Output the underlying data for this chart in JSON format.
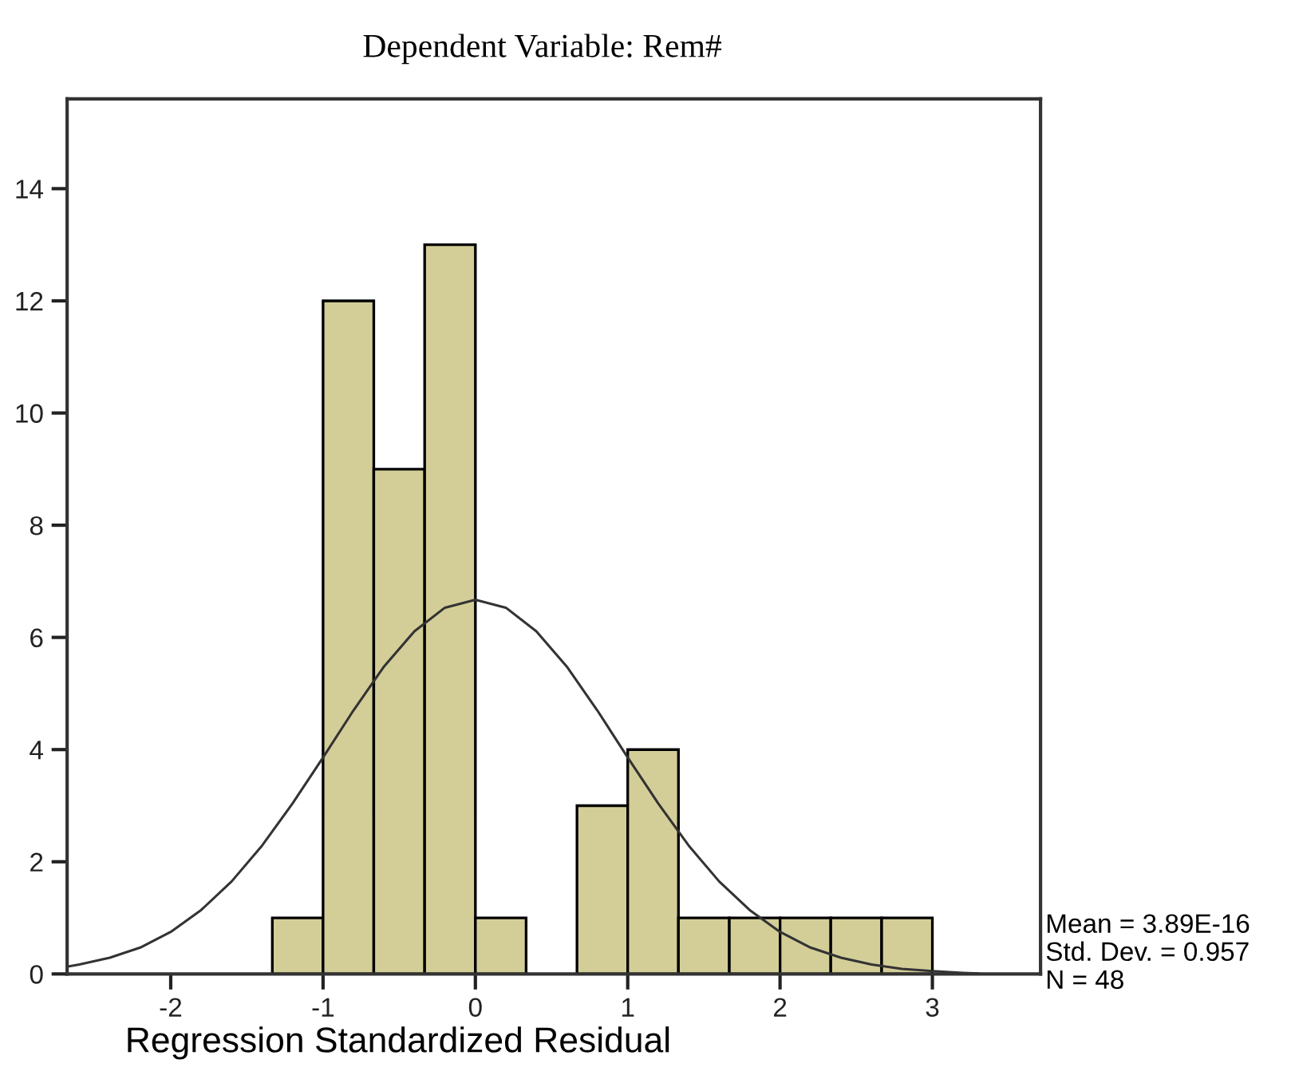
{
  "chart_data": {
    "type": "histogram",
    "title": "Dependent Variable: Rem#",
    "xlabel": "Regression Standardized Residual",
    "bins": [
      -1.333,
      -1.0,
      -0.667,
      -0.333,
      0.0,
      0.333,
      0.667,
      1.0,
      1.333,
      1.667,
      2.0,
      2.333,
      2.667,
      3.0
    ],
    "values": [
      1,
      12,
      9,
      13,
      1,
      0,
      3,
      4,
      1,
      1,
      1,
      1,
      1
    ],
    "color": "#d3ce98",
    "series": [
      {
        "type": "line",
        "color": "#333333",
        "x": [
          -2.68,
          -2.6,
          -2.4,
          -2.2,
          -2.0,
          -1.8,
          -1.6,
          -1.4,
          -1.2,
          -1.0,
          -0.8,
          -0.6,
          -0.4,
          -0.2,
          0.0,
          0.2,
          0.4,
          0.6,
          0.8,
          1.0,
          1.2,
          1.4,
          1.6,
          1.8,
          2.0,
          2.2,
          2.4,
          2.6,
          2.8,
          3.0,
          3.2,
          3.3
        ],
        "values": [
          0.13,
          0.17,
          0.29,
          0.47,
          0.75,
          1.14,
          1.65,
          2.29,
          3.04,
          3.86,
          4.7,
          5.48,
          6.11,
          6.53,
          6.67,
          6.53,
          6.11,
          5.48,
          4.7,
          3.86,
          3.04,
          2.29,
          1.65,
          1.14,
          0.75,
          0.47,
          0.29,
          0.17,
          0.09,
          0.05,
          0.02,
          0.01
        ]
      }
    ],
    "xlim": [
      -2.68,
      3.71
    ],
    "xticks": [
      -2,
      -1,
      0,
      1,
      2,
      3
    ],
    "ylim": [
      0,
      15.6
    ],
    "yticks": [
      0,
      2,
      4,
      6,
      8,
      10,
      12,
      14
    ],
    "annotations": [
      "Mean = 3.89E-16",
      "Std. Dev. = 0.957",
      "N = 48"
    ],
    "grid": false,
    "legend": false
  }
}
